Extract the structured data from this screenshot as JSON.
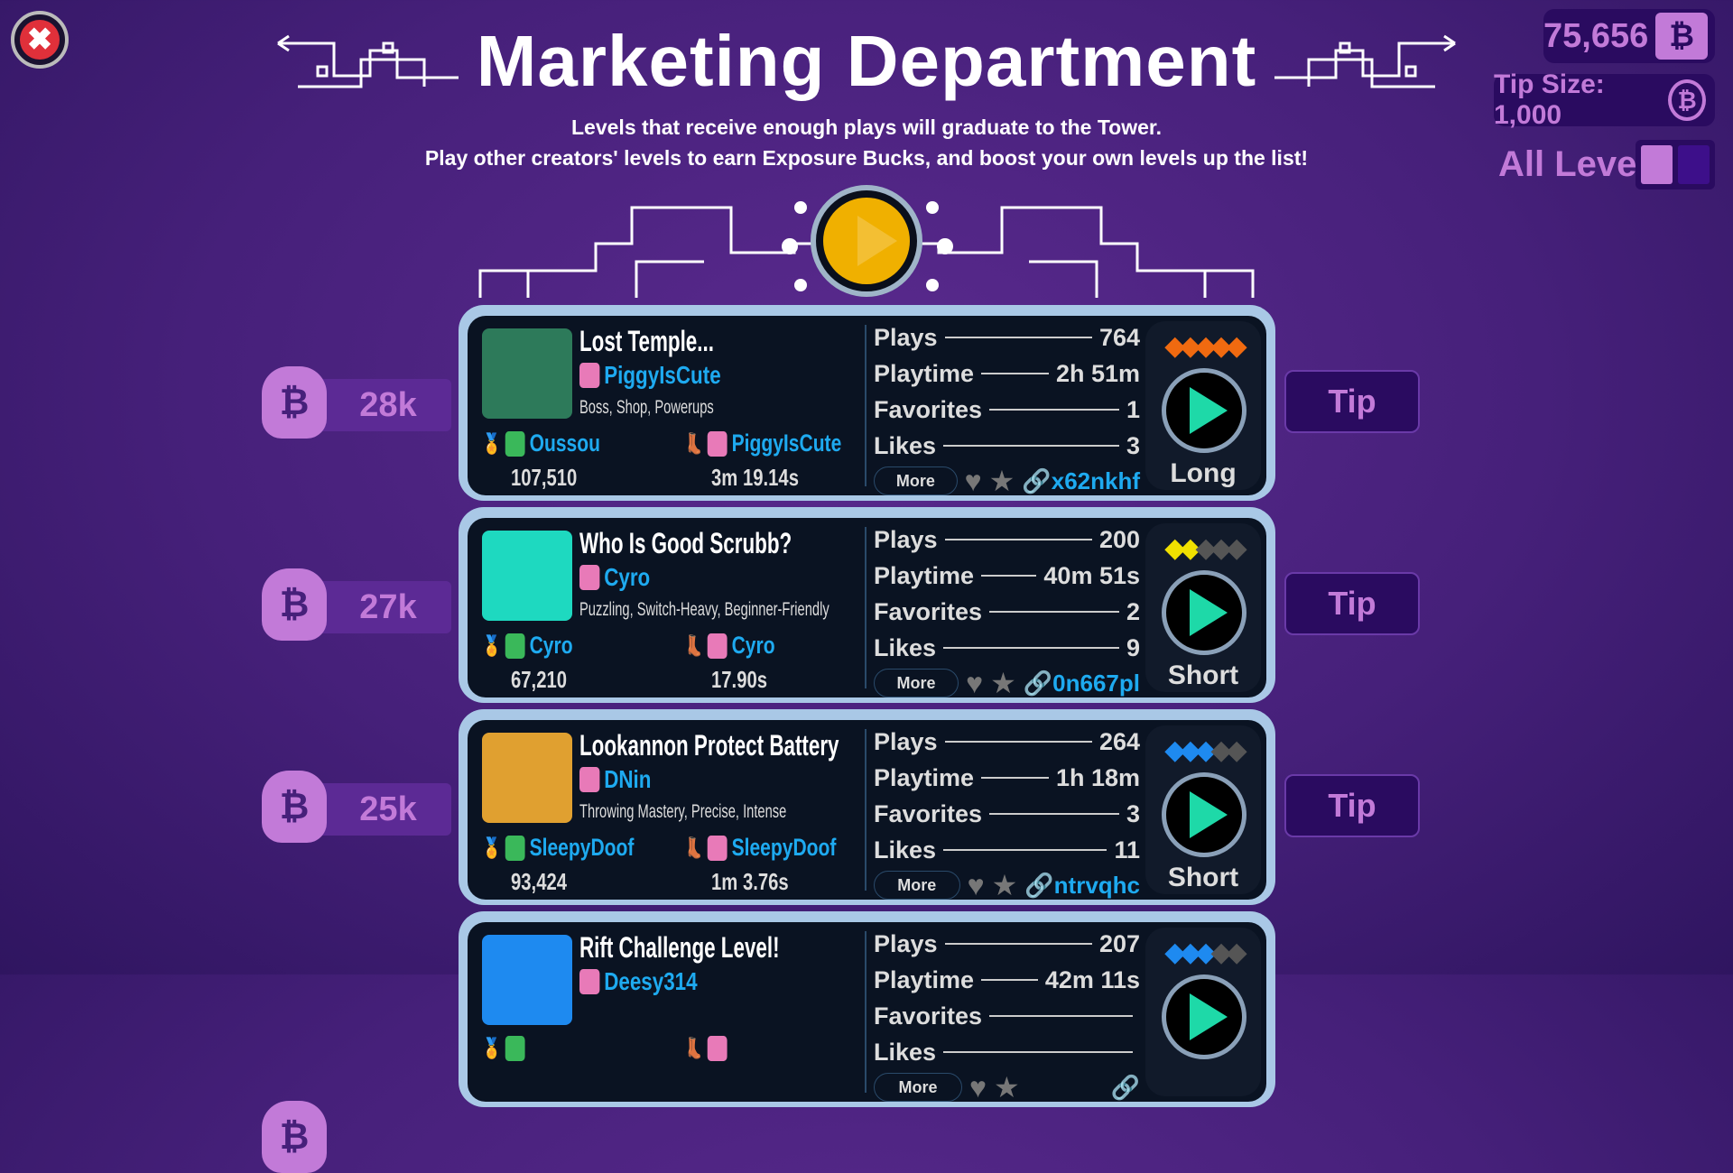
{
  "header": {
    "title": "Marketing Department",
    "subtitle_1": "Levels that receive enough plays will graduate to the Tower.",
    "subtitle_2": "Play other creators' levels to earn Exposure Bucks, and boost your own levels up the list!"
  },
  "wallet": {
    "balance": "75,656",
    "tip_size": "Tip Size: 1,000",
    "filter_label": "All Levels"
  },
  "labels": {
    "plays": "Plays",
    "playtime": "Playtime",
    "favorites": "Favorites",
    "likes": "Likes",
    "more": "More",
    "tip": "Tip"
  },
  "colors": {
    "accent": "#c27ad8",
    "author": "#1eaaf0",
    "play": "#1ed9a8"
  },
  "levels": [
    {
      "bounty": "28k",
      "title": "Lost Temple...",
      "author": "PiggyIsCute",
      "tags": "Boss, Shop, Powerups",
      "top_player": "Oussou",
      "top_score": "107,510",
      "speed_player": "PiggyIsCute",
      "speed_time": "3m 19.14s",
      "plays": "764",
      "playtime": "2h 51m",
      "favorites": "1",
      "likes": "3",
      "code": "x62nkhf",
      "difficulty": 5,
      "difficulty_color": "#f06a10",
      "length": "Long",
      "thumb": "#2d7a5a"
    },
    {
      "bounty": "27k",
      "title": "Who Is Good Scrubb?",
      "author": "Cyro",
      "tags": "Puzzling, Switch-Heavy, Beginner-Friendly",
      "top_player": "Cyro",
      "top_score": "67,210",
      "speed_player": "Cyro",
      "speed_time": "17.90s",
      "plays": "200",
      "playtime": "40m 51s",
      "favorites": "2",
      "likes": "9",
      "code": "0n667pl",
      "difficulty": 2,
      "difficulty_color": "#f0e000",
      "length": "Short",
      "thumb": "#1ed9c0"
    },
    {
      "bounty": "25k",
      "title": "Lookannon Protect Battery",
      "author": "DNin",
      "tags": "Throwing Mastery, Precise, Intense",
      "top_player": "SleepyDoof",
      "top_score": "93,424",
      "speed_player": "SleepyDoof",
      "speed_time": "1m 3.76s",
      "plays": "264",
      "playtime": "1h 18m",
      "favorites": "3",
      "likes": "11",
      "code": "ntrvqhc",
      "difficulty": 3,
      "difficulty_color": "#1e8af0",
      "length": "Short",
      "thumb": "#e0a030"
    },
    {
      "bounty": "",
      "title": "Rift Challenge Level!",
      "author": "Deesy314",
      "plays": "207",
      "playtime": "42m 11s",
      "difficulty": 3,
      "difficulty_color": "#1e8af0",
      "thumb": "#1e8af0"
    }
  ]
}
